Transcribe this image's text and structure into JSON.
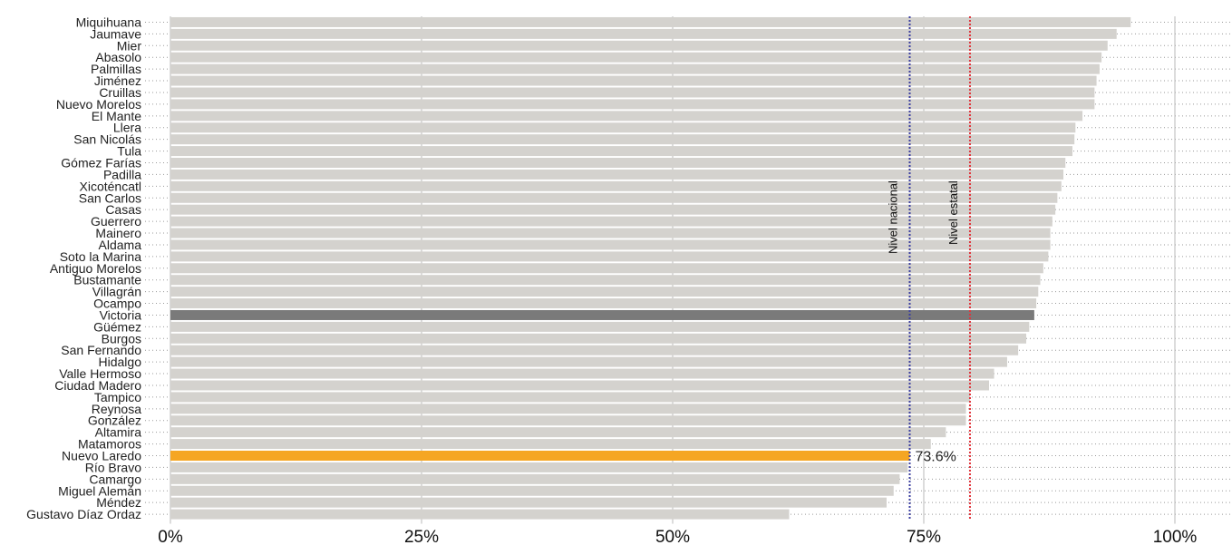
{
  "chart_data": {
    "type": "bar",
    "orientation": "horizontal",
    "categories": [
      "Miquihuana",
      "Jaumave",
      "Mier",
      "Abasolo",
      "Palmillas",
      "Jiménez",
      "Cruillas",
      "Nuevo Morelos",
      "El Mante",
      "Llera",
      "San Nicolás",
      "Tula",
      "Gómez Farías",
      "Padilla",
      "Xicoténcatl",
      "San Carlos",
      "Casas",
      "Guerrero",
      "Mainero",
      "Aldama",
      "Soto la Marina",
      "Antiguo Morelos",
      "Bustamante",
      "Villagrán",
      "Ocampo",
      "Victoria",
      "Güémez",
      "Burgos",
      "San Fernando",
      "Hidalgo",
      "Valle Hermoso",
      "Ciudad Madero",
      "Tampico",
      "Reynosa",
      "González",
      "Altamira",
      "Matamoros",
      "Nuevo Laredo",
      "Río Bravo",
      "Camargo",
      "Miguel Alemán",
      "Méndez",
      "Gustavo Díaz Ordaz"
    ],
    "values": [
      95.6,
      94.2,
      93.3,
      92.7,
      92.5,
      92.2,
      92.0,
      92.0,
      90.8,
      90.1,
      90.0,
      89.8,
      89.1,
      88.9,
      88.7,
      88.3,
      88.1,
      87.8,
      87.6,
      87.6,
      87.4,
      86.9,
      86.6,
      86.4,
      86.2,
      86.0,
      85.5,
      85.2,
      84.4,
      83.3,
      82.0,
      81.5,
      79.6,
      79.2,
      79.2,
      77.2,
      75.7,
      73.6,
      73.4,
      72.6,
      72.0,
      71.3,
      61.6
    ],
    "highlights": {
      "Victoria": "#7a7a7a",
      "Nuevo Laredo": "#f5a623"
    },
    "bar_color": "#d4d2ce",
    "value_labels": [
      {
        "category": "Nuevo Laredo",
        "text": "73.6%"
      }
    ],
    "reference_lines": [
      {
        "name": "Nivel nacional",
        "value": 73.6,
        "color": "#3b3fa0"
      },
      {
        "name": "Nivel estatal",
        "value": 79.6,
        "color": "#e0333a"
      }
    ],
    "xlim": [
      0,
      100
    ],
    "xticks": [
      0,
      25,
      50,
      75,
      100
    ],
    "xtick_labels": [
      "0%",
      "25%",
      "50%",
      "75%",
      "100%"
    ],
    "title": "",
    "xlabel": "",
    "ylabel": "",
    "grid": true,
    "legend": "none"
  }
}
